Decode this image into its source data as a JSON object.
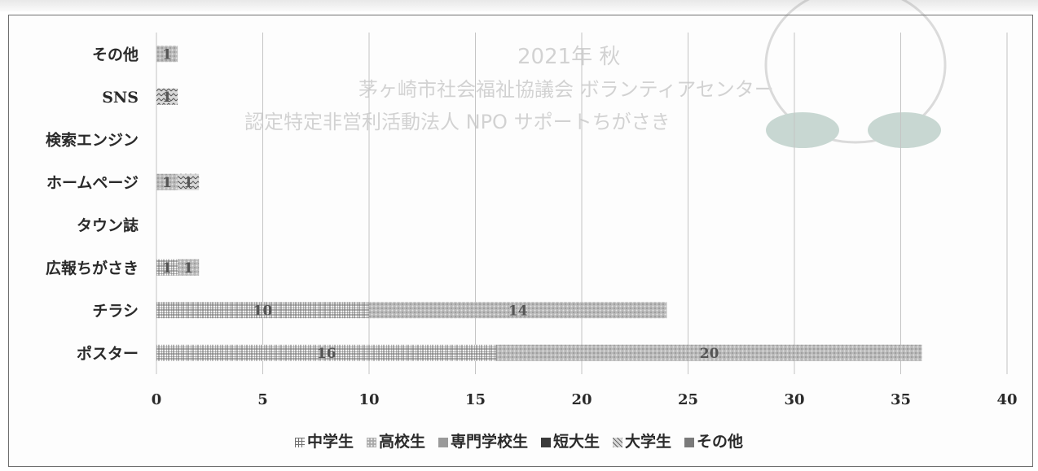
{
  "chart_data": {
    "type": "bar",
    "orientation": "horizontal",
    "stacked": true,
    "categories": [
      "その他",
      "SNS",
      "検索エンジン",
      "ホームページ",
      "タウン誌",
      "広報ちがさき",
      "チラシ",
      "ポスター"
    ],
    "series": [
      {
        "name": "中学生",
        "values": [
          0,
          0,
          0,
          0,
          0,
          1,
          10,
          16
        ],
        "color": "#8a8a8a",
        "pattern": "grid"
      },
      {
        "name": "高校生",
        "values": [
          1,
          0,
          0,
          1,
          0,
          1,
          14,
          20
        ],
        "color": "#a8a8a8",
        "pattern": "dots"
      },
      {
        "name": "専門学校生",
        "values": [
          0,
          0,
          0,
          0,
          0,
          0,
          0,
          0
        ],
        "color": "#9a9a9a",
        "pattern": "solid"
      },
      {
        "name": "短大生",
        "values": [
          0,
          0,
          0,
          0,
          0,
          0,
          0,
          0
        ],
        "color": "#3a3a3a",
        "pattern": "solid"
      },
      {
        "name": "大学生",
        "values": [
          0,
          1,
          0,
          1,
          0,
          0,
          0,
          0
        ],
        "color": "#9c9c9c",
        "pattern": "zigzag"
      },
      {
        "name": "その他",
        "values": [
          0,
          0,
          0,
          0,
          0,
          0,
          0,
          0
        ],
        "color": "#7a7a7a",
        "pattern": "solid"
      }
    ],
    "xlim": [
      0,
      40
    ],
    "xticks": [
      "0",
      "5",
      "10",
      "15",
      "20",
      "25",
      "30",
      "35",
      "40"
    ],
    "grid": true,
    "legend_position": "bottom"
  },
  "watermark": {
    "lines": [
      "2021年 秋",
      "茅ヶ崎市社会福祉協議会 ボランティアセンター",
      "認定特定非営利活動法人 NPO サポートちがさき"
    ]
  }
}
